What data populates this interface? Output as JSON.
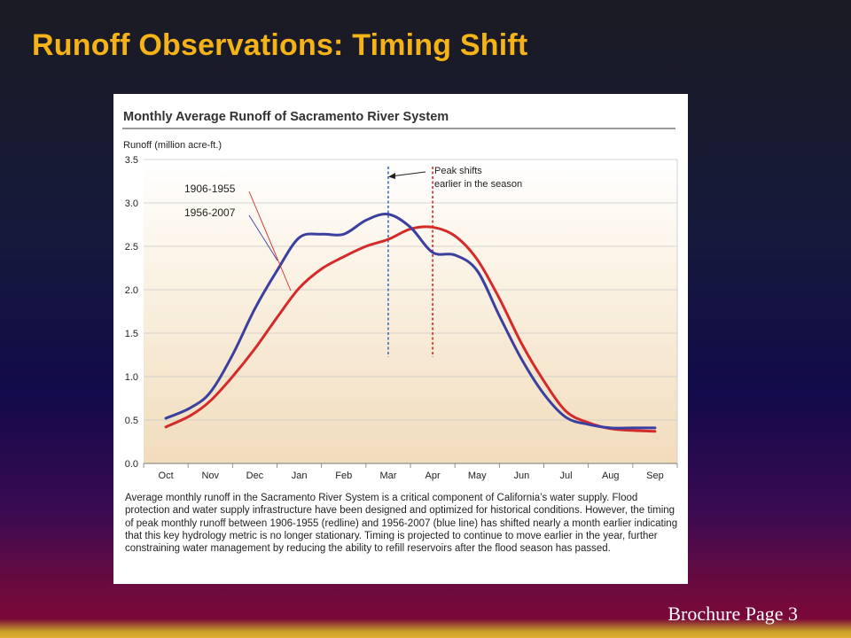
{
  "slide": {
    "title": "Runoff Observations: Timing Shift",
    "footer": "Brochure Page 3"
  },
  "figure": {
    "caption": "Average monthly runoff in the Sacramento River System is a critical component of California’s water supply. Flood protection and water supply infrastructure have been designed and optimized for historical conditions. However, the timing of peak monthly runoff between 1906-1955 (redline) and 1956-2007 (blue line) has shifted nearly a month earlier indicating that this key hydrology metric is no longer stationary. Timing is projected to continue to move earlier in the year, further constraining water management by reducing the ability to refill reservoirs after the flood season has passed."
  },
  "chart_data": {
    "type": "line",
    "title": "Monthly Average Runoff of Sacramento River System",
    "ylabel": "Runoff (million acre-ft.)",
    "xlabel": "",
    "categories": [
      "Oct",
      "Nov",
      "Dec",
      "Jan",
      "Feb",
      "Mar",
      "Apr",
      "May",
      "Jun",
      "Jul",
      "Aug",
      "Sep"
    ],
    "ylim": [
      0,
      3.5
    ],
    "yticks": [
      "0.0",
      "0.5",
      "1.0",
      "1.5",
      "2.0",
      "2.5",
      "3.0",
      "3.5"
    ],
    "grid": true,
    "series": [
      {
        "name": "1906-1955",
        "color": "#d42a2a",
        "x": [
          0,
          0.55,
          1,
          1.5,
          2,
          2.5,
          3,
          3.5,
          4,
          4.5,
          5,
          5.5,
          6,
          6.5,
          7,
          7.5,
          8,
          8.5,
          9,
          9.5,
          10,
          10.5,
          11
        ],
        "values": [
          0.42,
          0.55,
          0.72,
          1.0,
          1.32,
          1.68,
          2.02,
          2.24,
          2.38,
          2.5,
          2.58,
          2.7,
          2.72,
          2.62,
          2.35,
          1.9,
          1.38,
          0.95,
          0.6,
          0.47,
          0.4,
          0.38,
          0.37
        ]
      },
      {
        "name": "1956-2007",
        "color": "#3b3fa0",
        "x": [
          0,
          0.55,
          1,
          1.5,
          2,
          2.5,
          3,
          3.5,
          4,
          4.5,
          5,
          5.5,
          6,
          6.5,
          7,
          7.5,
          8,
          8.5,
          9,
          9.5,
          10,
          10.5,
          11
        ],
        "values": [
          0.52,
          0.64,
          0.82,
          1.25,
          1.78,
          2.22,
          2.6,
          2.64,
          2.64,
          2.8,
          2.87,
          2.72,
          2.43,
          2.4,
          2.22,
          1.7,
          1.2,
          0.8,
          0.53,
          0.45,
          0.41,
          0.41,
          0.41
        ]
      }
    ],
    "peaks": [
      {
        "series": "1956-2007",
        "x": 5,
        "color": "#3b6fc0"
      },
      {
        "series": "1906-1955",
        "x": 6,
        "color": "#d42a2a"
      }
    ],
    "annotation": "Peak shifts\nearlier in the season"
  }
}
